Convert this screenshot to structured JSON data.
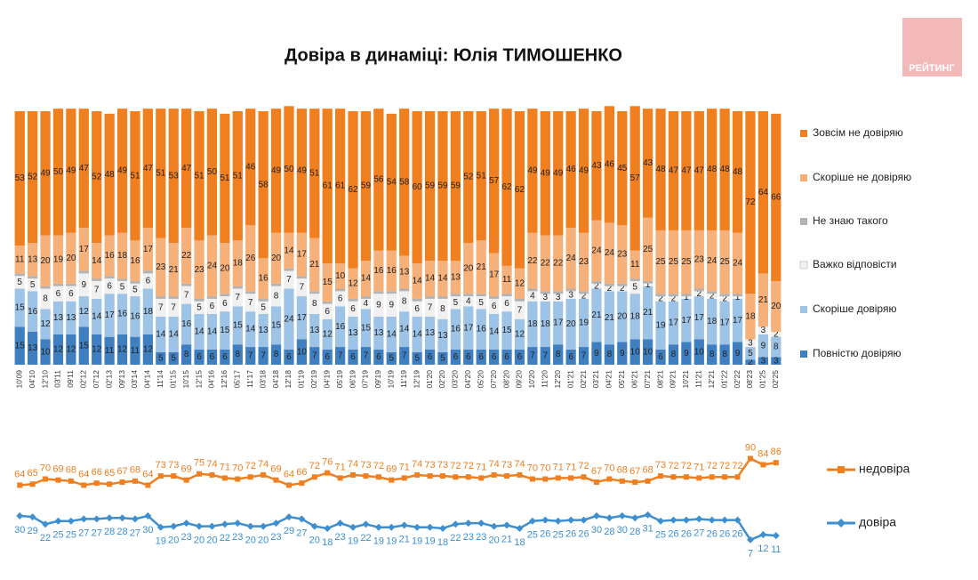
{
  "logo": "РЕЙТИНГ",
  "chart_data": [
    {
      "type": "bar",
      "stacked": true,
      "title": "Довіра в динаміці: Юлія ТИМОШЕНКО",
      "categories": [
        "10'09",
        "04'10",
        "12'10",
        "03'11",
        "09'11",
        "02'12",
        "07'12",
        "02'13",
        "09'13",
        "03'14",
        "04'14",
        "11'14",
        "01'15",
        "10'15",
        "12'15",
        "04'16",
        "12'16",
        "05'17",
        "11'17",
        "03'18",
        "04'18",
        "12'18",
        "01'19",
        "02'19",
        "04'19",
        "05'19",
        "06'19",
        "07'19",
        "09'19",
        "10'19",
        "11'19",
        "12'19",
        "01'20",
        "02'20",
        "03'20",
        "04'20",
        "05'20",
        "07'20",
        "08'20",
        "09'20",
        "10'20",
        "11'20",
        "12'20",
        "01'21",
        "02'21",
        "03'21",
        "04'21",
        "05'21",
        "06'21",
        "07'21",
        "08'21",
        "09'21",
        "10'21",
        "11'21",
        "12'21",
        "01'22",
        "02'22",
        "08'23",
        "01'25",
        "02'25"
      ],
      "series": [
        {
          "name": "Зовсім не довіряю",
          "color": "#f07f20",
          "labels": true,
          "values": [
            53,
            52,
            49,
            50,
            49,
            47,
            52,
            48,
            49,
            51,
            47,
            51,
            53,
            47,
            51,
            50,
            51,
            51,
            46,
            58,
            49,
            50,
            49,
            51,
            61,
            61,
            62,
            59,
            56,
            54,
            58,
            60,
            59,
            59,
            59,
            52,
            51,
            57,
            62,
            62,
            49,
            49,
            49,
            46,
            49,
            43,
            46,
            45,
            57,
            43,
            48,
            47,
            47,
            47,
            48,
            48,
            48,
            72,
            64,
            66
          ]
        },
        {
          "name": "Скоріше не довіряю",
          "color": "#f6b07a",
          "labels": true,
          "values": [
            11,
            13,
            20,
            19,
            20,
            17,
            14,
            16,
            18,
            16,
            17,
            23,
            21,
            22,
            23,
            24,
            20,
            18,
            26,
            16,
            20,
            14,
            17,
            21,
            15,
            10,
            12,
            14,
            16,
            16,
            13,
            14,
            14,
            14,
            13,
            20,
            21,
            17,
            11,
            12,
            22,
            22,
            22,
            24,
            23,
            24,
            24,
            23,
            11,
            25,
            25,
            25,
            25,
            23,
            24,
            25,
            24,
            18,
            21,
            20
          ]
        },
        {
          "name": "Не знаю такого",
          "color": "#b3b3b3",
          "labels": false,
          "values": [
            1,
            1,
            1,
            1,
            1,
            1,
            1,
            1,
            1,
            1,
            1,
            1,
            1,
            1,
            1,
            1,
            1,
            1,
            1,
            1,
            1,
            1,
            1,
            1,
            1,
            1,
            1,
            1,
            1,
            1,
            1,
            1,
            1,
            1,
            1,
            1,
            1,
            1,
            1,
            1,
            1,
            1,
            1,
            1,
            1,
            1,
            1,
            1,
            1,
            1,
            1,
            1,
            1,
            1,
            1,
            1,
            1,
            0,
            0,
            0
          ]
        },
        {
          "name": "Важко відповісти",
          "color": "#f0f0f0",
          "labels": true,
          "values": [
            5,
            5,
            8,
            6,
            6,
            9,
            7,
            6,
            5,
            5,
            6,
            7,
            7,
            7,
            5,
            6,
            6,
            7,
            7,
            5,
            8,
            7,
            7,
            8,
            6,
            6,
            6,
            4,
            9,
            9,
            8,
            6,
            7,
            8,
            5,
            4,
            5,
            6,
            6,
            7,
            4,
            3,
            3,
            3,
            2,
            2,
            2,
            2,
            5,
            1,
            2,
            2,
            1,
            2,
            2,
            2,
            1,
            3,
            3,
            2
          ]
        },
        {
          "name": "Скоріше довіряю",
          "color": "#9dc3e6",
          "labels": true,
          "values": [
            15,
            16,
            12,
            13,
            13,
            12,
            14,
            17,
            16,
            16,
            18,
            14,
            14,
            16,
            14,
            14,
            15,
            15,
            14,
            13,
            15,
            24,
            17,
            13,
            12,
            16,
            13,
            15,
            13,
            14,
            14,
            14,
            13,
            13,
            16,
            17,
            16,
            14,
            15,
            12,
            18,
            18,
            17,
            20,
            19,
            21,
            21,
            20,
            18,
            21,
            19,
            17,
            17,
            17,
            18,
            17,
            17,
            5,
            9,
            8
          ]
        },
        {
          "name": "Повністю довіряю",
          "color": "#3f7fc0",
          "labels": true,
          "values": [
            15,
            13,
            10,
            12,
            12,
            15,
            12,
            11,
            12,
            11,
            12,
            5,
            5,
            8,
            6,
            6,
            6,
            8,
            7,
            7,
            8,
            6,
            10,
            7,
            6,
            7,
            6,
            7,
            6,
            5,
            7,
            5,
            6,
            5,
            6,
            6,
            6,
            6,
            6,
            6,
            7,
            7,
            8,
            6,
            7,
            9,
            8,
            9,
            10,
            10,
            6,
            8,
            9,
            10,
            8,
            8,
            9,
            2,
            3,
            3
          ]
        }
      ]
    },
    {
      "type": "line",
      "series": [
        {
          "name": "недовіра",
          "color": "#f07f20",
          "marker": "square",
          "values": [
            64,
            65,
            70,
            69,
            68,
            64,
            66,
            65,
            67,
            68,
            64,
            73,
            73,
            69,
            75,
            74,
            71,
            70,
            72,
            74,
            69,
            64,
            66,
            72,
            76,
            71,
            74,
            73,
            72,
            69,
            71,
            74,
            73,
            73,
            72,
            72,
            71,
            74,
            73,
            74,
            70,
            70,
            71,
            71,
            72,
            67,
            70,
            68,
            67,
            68,
            73,
            72,
            72,
            71,
            72,
            72,
            72,
            90,
            84,
            86
          ]
        },
        {
          "name": "довіра",
          "color": "#3d8fd0",
          "marker": "diamond",
          "values": [
            30,
            29,
            22,
            25,
            25,
            27,
            27,
            28,
            28,
            27,
            30,
            19,
            20,
            23,
            20,
            20,
            22,
            23,
            20,
            20,
            23,
            29,
            27,
            20,
            18,
            23,
            19,
            22,
            19,
            19,
            21,
            19,
            19,
            18,
            22,
            23,
            23,
            20,
            21,
            18,
            25,
            26,
            25,
            26,
            26,
            30,
            28,
            30,
            28,
            31,
            25,
            26,
            26,
            27,
            26,
            26,
            26,
            7,
            12,
            11
          ]
        }
      ]
    }
  ]
}
